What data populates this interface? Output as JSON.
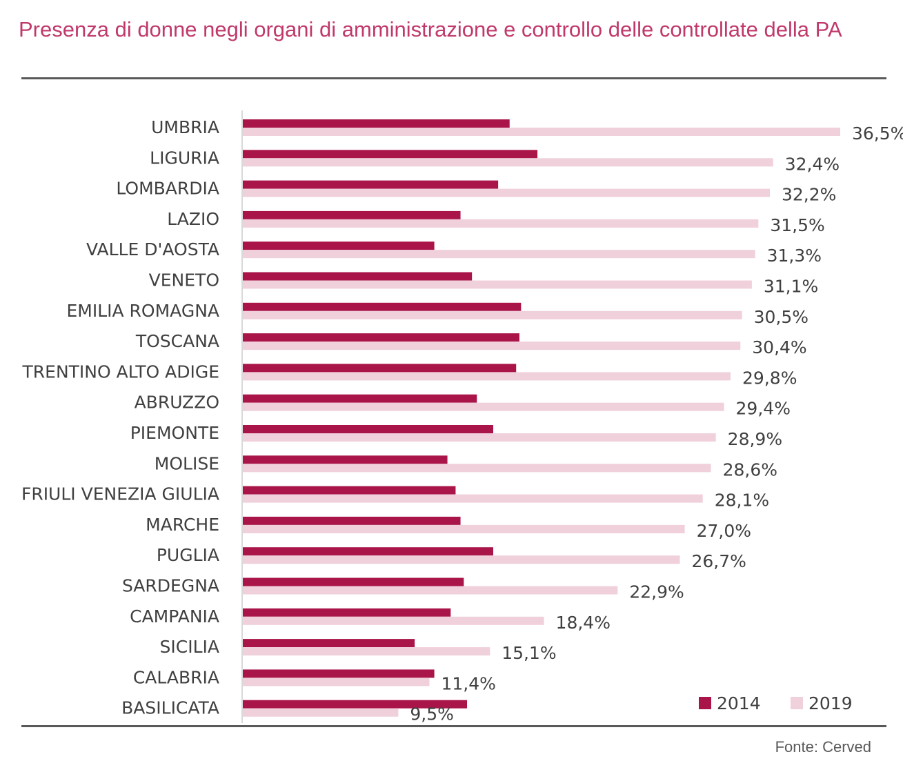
{
  "title": "Presenza di donne negli organi di amministrazione e controllo delle controllate della PA",
  "source": "Fonte: Cerved",
  "colors": {
    "series_2014": "#aa1549",
    "series_2019": "#f0d0db",
    "title": "#c0396b",
    "text": "#404040",
    "rule": "#595959"
  },
  "chart_data": {
    "type": "bar",
    "orientation": "horizontal",
    "title": "Presenza di donne negli organi di amministrazione e controllo delle controllate della PA",
    "categories": [
      "UMBRIA",
      "LIGURIA",
      "LOMBARDIA",
      "LAZIO",
      "VALLE D'AOSTA",
      "VENETO",
      "EMILIA ROMAGNA",
      "TOSCANA",
      "TRENTINO ALTO ADIGE",
      "ABRUZZO",
      "PIEMONTE",
      "MOLISE",
      "FRIULI VENEZIA GIULIA",
      "MARCHE",
      "PUGLIA",
      "SARDEGNA",
      "CAMPANIA",
      "SICILIA",
      "CALABRIA",
      "BASILICATA"
    ],
    "series": [
      {
        "name": "2014",
        "values": [
          16.3,
          18.0,
          15.6,
          13.3,
          11.7,
          14.0,
          17.0,
          16.9,
          16.7,
          14.3,
          15.3,
          12.5,
          13.0,
          13.3,
          15.3,
          13.5,
          12.7,
          10.5,
          11.7,
          13.7
        ]
      },
      {
        "name": "2019",
        "values": [
          36.5,
          32.4,
          32.2,
          31.5,
          31.3,
          31.1,
          30.5,
          30.4,
          29.8,
          29.4,
          28.9,
          28.6,
          28.1,
          27.0,
          26.7,
          22.9,
          18.4,
          15.1,
          11.4,
          9.5
        ]
      }
    ],
    "data_labels_2019": [
      "36,5%",
      "32,4%",
      "32,2%",
      "31,5%",
      "31,3%",
      "31,1%",
      "30,5%",
      "30,4%",
      "29,8%",
      "29,4%",
      "28,9%",
      "28,6%",
      "28,1%",
      "27,0%",
      "26,7%",
      "22,9%",
      "18,4%",
      "15,1%",
      "11,4%",
      "9,5%"
    ],
    "xlim": [
      0,
      37
    ],
    "grid": false,
    "legend_position": "bottom-right"
  }
}
